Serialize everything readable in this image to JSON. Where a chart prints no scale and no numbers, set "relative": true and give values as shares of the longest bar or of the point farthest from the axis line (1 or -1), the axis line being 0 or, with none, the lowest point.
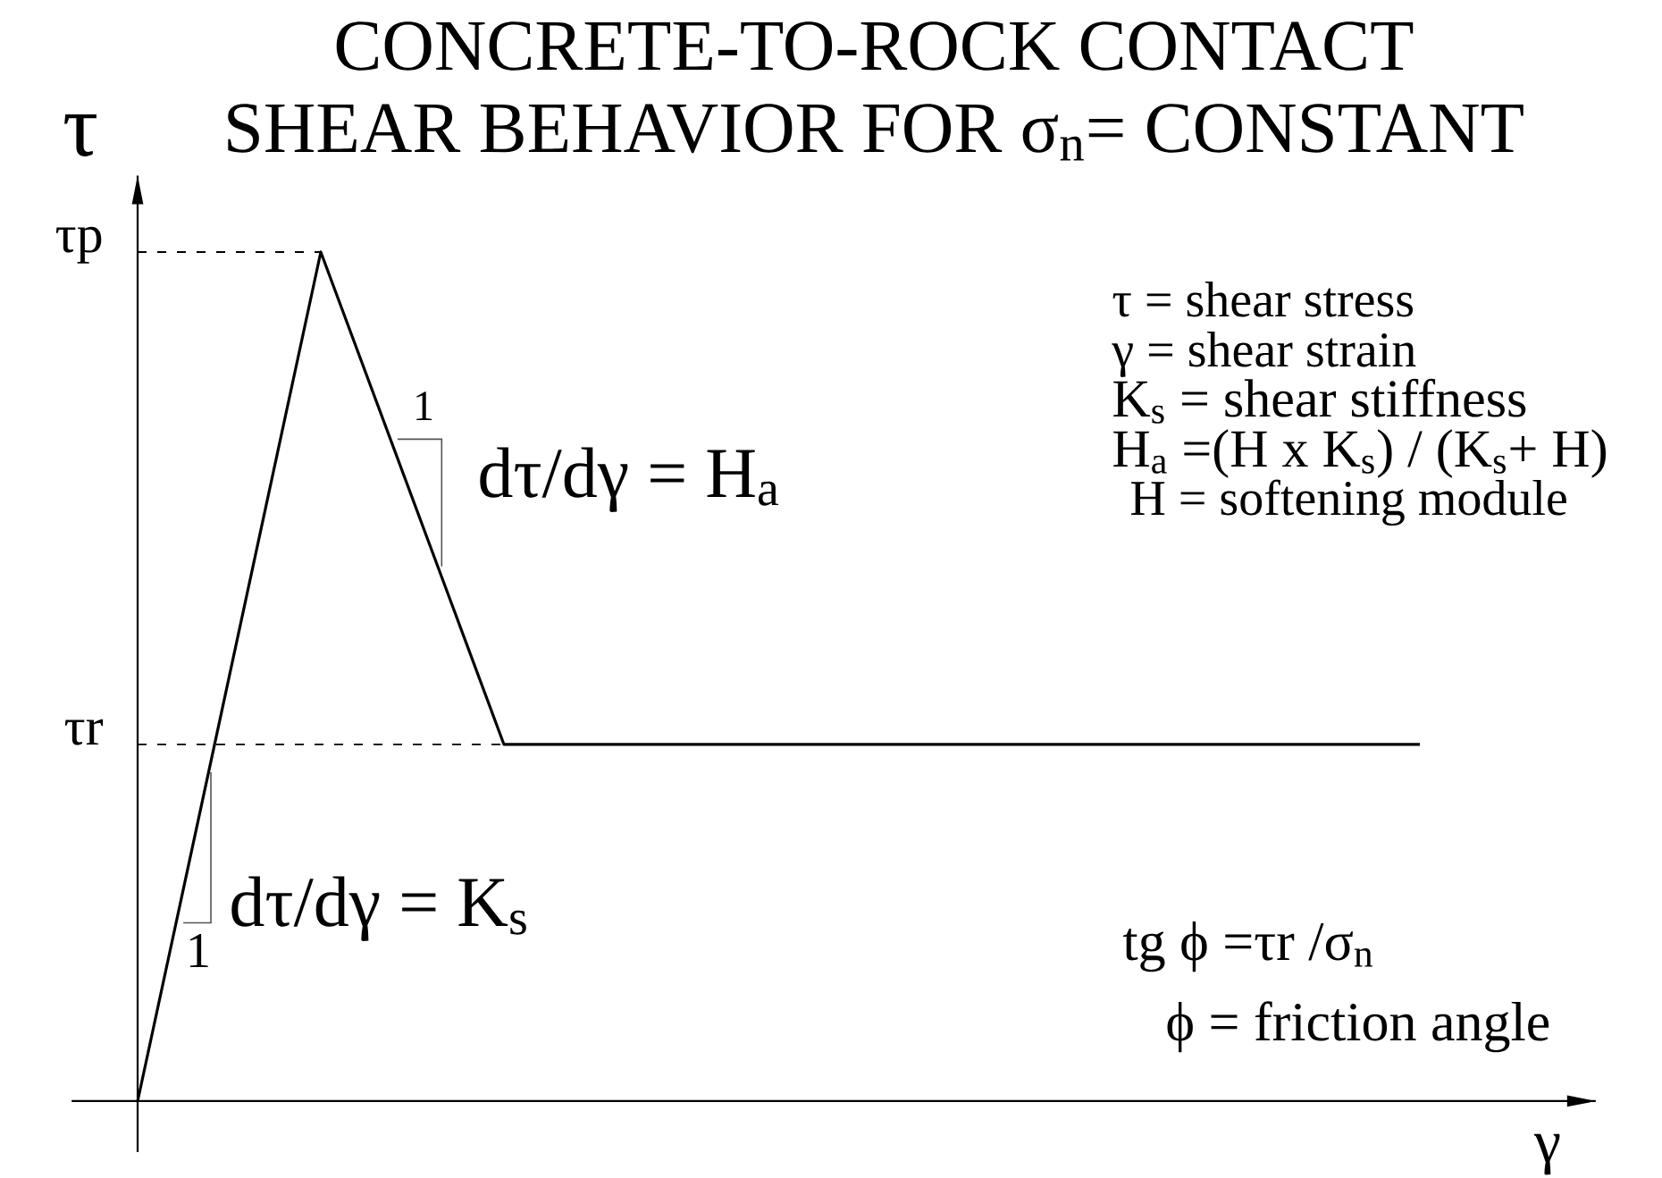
{
  "chart_data": {
    "type": "line",
    "title": "CONCRETE-TO-ROCK CONTACT",
    "subtitle": "SHEAR BEHAVIOR FOR σ$_{n}$= CONSTANT",
    "xlabel": "γ",
    "ylabel": "τ",
    "relative": true,
    "categories": [
      null,
      null,
      null,
      null,
      null,
      null,
      null,
      null
    ],
    "series": [
      {
        "color": "#000000",
        "values": [
          0,
          1,
          0.42,
          0.42,
          0.42,
          0.42,
          0.42,
          0.42
        ]
      }
    ],
    "ref_lines": [
      {
        "axis": "y",
        "value": 1,
        "label": "τp",
        "color": "#000000",
        "line_style": "dashed"
      },
      {
        "axis": "y",
        "value": 0.42,
        "label": "τr",
        "color": "#000000",
        "line_style": "dashed"
      }
    ],
    "marker": "none",
    "line_style": "solid",
    "annotations": [
      "dτ/dγ = H$_{a}$",
      "1",
      "dτ/dγ = K$_{s}$",
      "1",
      "τ  = shear stress",
      "γ  = shear strain",
      "K$_{s}$ = shear stiffness",
      "H$_{a}$ =(H x K$_{s}$) / (K$_{s}$+ H)",
      "H = softening module",
      "tg ϕ =τr /σ$_{n}$",
      "ϕ = friction angle"
    ]
  }
}
